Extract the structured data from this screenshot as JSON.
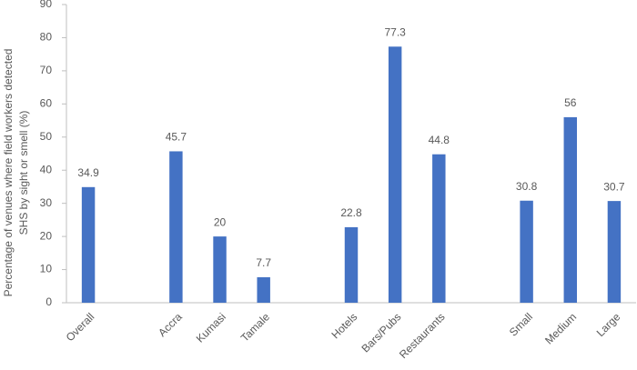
{
  "chart_data": {
    "type": "bar",
    "ylabel": [
      "Percentage of venues where field workers detected",
      "SHS by sight or smell (%)"
    ],
    "categories": [
      "Overall",
      null,
      "Accra",
      "Kumasi",
      "Tamale",
      null,
      "Hotels",
      "Bars/Pubs",
      "Restaurants",
      null,
      "Small",
      "Medium",
      "Large"
    ],
    "values": [
      34.9,
      null,
      45.7,
      20,
      7.7,
      null,
      22.8,
      77.3,
      44.8,
      null,
      30.8,
      56,
      30.7
    ],
    "color": "#4472c4",
    "ylim": [
      0,
      90
    ],
    "yticks": [
      0,
      10,
      20,
      30,
      40,
      50,
      60,
      70,
      80,
      90
    ],
    "grid": false
  }
}
